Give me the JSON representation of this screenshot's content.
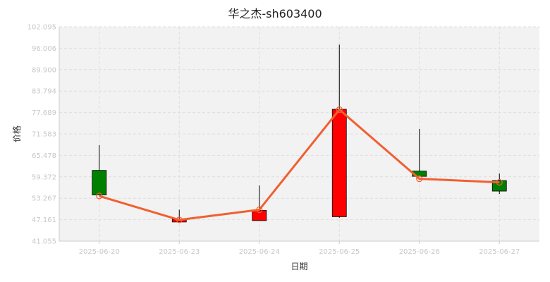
{
  "chart_data": {
    "type": "candlestick",
    "title": "华之杰-sh603400",
    "xlabel": "日期",
    "ylabel": "价格",
    "grid": true,
    "legend": "none",
    "y_ticks": [
      "41.055",
      "47.161",
      "53.267",
      "59.372",
      "65.478",
      "71.583",
      "77.689",
      "83.794",
      "89.900",
      "96.006",
      "102.095"
    ],
    "ylim": [
      41.055,
      102.095
    ],
    "categories": [
      "2025-06-20",
      "2025-06-23",
      "2025-06-24",
      "2025-06-25",
      "2025-06-26",
      "2025-06-27"
    ],
    "series": [
      {
        "open": [
          61.2,
          46.5,
          46.9,
          48.0,
          61.0,
          58.3
        ],
        "close": [
          54.2,
          47.3,
          49.8,
          78.6,
          59.5,
          55.3
        ],
        "high": [
          68.4,
          50.0,
          56.9,
          97.0,
          73.0,
          60.3
        ],
        "low": [
          54.2,
          46.5,
          46.9,
          47.7,
          59.5,
          54.5
        ]
      },
      {
        "values": [
          53.9,
          47.1,
          50.0,
          78.5,
          58.8,
          57.8
        ]
      }
    ],
    "colors": {
      "up": "#ff0000",
      "down": "#008000",
      "line": "#f06030",
      "plot_bg": "#f2f2f2",
      "grid": "#dddddd"
    }
  }
}
